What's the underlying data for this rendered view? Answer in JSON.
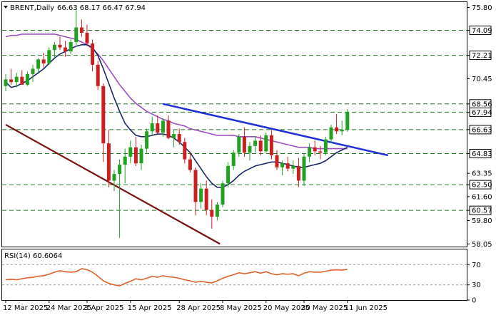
{
  "header": {
    "symbol": "BRENT,Daily",
    "ohlc": "66.63 68.17 66.47 67.94",
    "indicator_label": "RSI(14) 60.6064"
  },
  "colors": {
    "up": "#22a022",
    "down": "#cc1f1f",
    "ma_fast": "#1a2766",
    "ma_slow": "#9b4fc0",
    "trend_down": "#7a1010",
    "trend_blue": "#1f2fd6",
    "level_line": "#1f7a1f",
    "rsi_line": "#e0602a"
  },
  "chart_data": {
    "type": "candlestick",
    "y_ticks": [
      "75.80",
      "74.09",
      "72.21",
      "70.45",
      "68.56",
      "67.94",
      "66.63",
      "64.83",
      "63.35",
      "62.50",
      "61.60",
      "60.57",
      "59.80",
      "58.05"
    ],
    "y_tick_values": [
      75.8,
      74.09,
      72.21,
      70.45,
      68.56,
      67.94,
      66.63,
      64.83,
      63.35,
      62.5,
      61.6,
      60.57,
      59.8,
      58.05
    ],
    "highlighted_levels": [
      {
        "value": 74.09,
        "label": "74.09",
        "style": "box"
      },
      {
        "value": 72.21,
        "label": "72.21",
        "style": "box"
      },
      {
        "value": 68.56,
        "label": "68.56",
        "style": "box"
      },
      {
        "value": 67.94,
        "label": "67.94",
        "style": "box-current"
      },
      {
        "value": 66.63,
        "label": "66.63",
        "style": "box"
      },
      {
        "value": 64.83,
        "label": "64.83",
        "style": "box"
      },
      {
        "value": 62.5,
        "label": "62.50",
        "style": "box"
      },
      {
        "value": 60.57,
        "label": "60.57",
        "style": "box"
      }
    ],
    "dashed_levels": [
      74.09,
      72.21,
      68.56,
      67.94,
      66.63,
      64.83,
      62.5,
      60.57
    ],
    "ylim": [
      57.85,
      76.2
    ],
    "x_labels": [
      "12 Mar 2025",
      "24 Mar 2025",
      "3 Apr 2025",
      "15 Apr 2025",
      "28 Apr 2025",
      "8 May 2025",
      "20 May 2025",
      "30 May 2025",
      "11 Jun 2025"
    ],
    "x_label_index": [
      0,
      8,
      15,
      23,
      32,
      40,
      48,
      55,
      63
    ],
    "candles": [
      [
        69.9,
        70.8,
        69.5,
        70.4
      ],
      [
        70.4,
        71.2,
        70.0,
        70.2
      ],
      [
        70.2,
        70.9,
        69.8,
        70.6
      ],
      [
        70.6,
        71.1,
        70.1,
        70.0
      ],
      [
        70.0,
        71.0,
        69.9,
        70.8
      ],
      [
        70.8,
        71.5,
        70.2,
        71.2
      ],
      [
        71.2,
        72.0,
        70.8,
        71.9
      ],
      [
        71.9,
        72.4,
        71.3,
        71.6
      ],
      [
        71.6,
        72.8,
        71.5,
        72.6
      ],
      [
        72.6,
        73.2,
        72.0,
        73.0
      ],
      [
        73.0,
        73.6,
        72.6,
        72.8
      ],
      [
        72.8,
        73.3,
        72.1,
        72.5
      ],
      [
        72.5,
        73.4,
        72.3,
        73.2
      ],
      [
        73.2,
        75.8,
        73.0,
        74.3
      ],
      [
        74.3,
        74.9,
        73.6,
        73.9
      ],
      [
        73.9,
        74.5,
        72.9,
        73.1
      ],
      [
        73.1,
        73.4,
        71.0,
        71.5
      ],
      [
        71.5,
        71.8,
        69.6,
        69.9
      ],
      [
        69.9,
        70.1,
        64.2,
        65.6
      ],
      [
        65.6,
        66.6,
        62.3,
        62.8
      ],
      [
        62.8,
        63.6,
        62.0,
        63.3
      ],
      [
        63.3,
        64.4,
        58.5,
        64.0
      ],
      [
        64.0,
        65.2,
        62.6,
        64.6
      ],
      [
        64.6,
        65.8,
        64.1,
        65.3
      ],
      [
        65.3,
        66.1,
        63.9,
        64.1
      ],
      [
        64.1,
        65.5,
        63.6,
        65.2
      ],
      [
        65.2,
        66.7,
        64.9,
        66.5
      ],
      [
        66.5,
        67.6,
        66.2,
        67.1
      ],
      [
        67.1,
        67.7,
        66.3,
        66.4
      ],
      [
        66.4,
        67.5,
        66.1,
        67.3
      ],
      [
        67.3,
        67.7,
        65.9,
        66.0
      ],
      [
        66.0,
        66.6,
        65.3,
        66.3
      ],
      [
        66.3,
        66.7,
        65.5,
        65.7
      ],
      [
        65.7,
        66.0,
        64.1,
        64.4
      ],
      [
        64.4,
        64.9,
        63.4,
        63.6
      ],
      [
        63.6,
        63.8,
        60.2,
        61.2
      ],
      [
        61.2,
        62.6,
        60.7,
        62.2
      ],
      [
        62.2,
        62.8,
        60.2,
        60.6
      ],
      [
        60.6,
        61.4,
        59.2,
        60.1
      ],
      [
        60.1,
        61.2,
        59.8,
        61.0
      ],
      [
        61.0,
        62.8,
        60.8,
        62.6
      ],
      [
        62.6,
        64.2,
        62.3,
        63.9
      ],
      [
        63.9,
        65.1,
        63.6,
        64.9
      ],
      [
        64.9,
        66.3,
        64.6,
        66.1
      ],
      [
        66.1,
        66.8,
        64.6,
        64.9
      ],
      [
        64.9,
        65.7,
        64.3,
        65.4
      ],
      [
        65.4,
        66.1,
        64.9,
        65.8
      ],
      [
        65.8,
        66.2,
        64.7,
        65.0
      ],
      [
        65.0,
        66.4,
        64.9,
        66.2
      ],
      [
        66.2,
        66.6,
        64.4,
        64.7
      ],
      [
        64.7,
        65.1,
        63.6,
        63.8
      ],
      [
        63.8,
        64.3,
        63.2,
        64.1
      ],
      [
        64.1,
        64.6,
        63.5,
        63.7
      ],
      [
        63.7,
        64.3,
        63.3,
        63.9
      ],
      [
        63.9,
        64.5,
        62.3,
        62.8
      ],
      [
        62.8,
        64.8,
        62.4,
        64.6
      ],
      [
        64.6,
        65.6,
        64.2,
        65.3
      ],
      [
        65.3,
        65.8,
        64.7,
        65.0
      ],
      [
        65.0,
        65.4,
        64.4,
        64.9
      ],
      [
        64.9,
        66.1,
        64.7,
        65.9
      ],
      [
        65.9,
        67.0,
        65.6,
        66.8
      ],
      [
        66.8,
        67.8,
        66.3,
        66.5
      ],
      [
        66.5,
        67.3,
        66.2,
        66.63
      ],
      [
        66.63,
        68.17,
        66.47,
        67.94
      ]
    ],
    "ma_fast": [
      70.2,
      69.8,
      69.9,
      70.1,
      70.3,
      70.6,
      70.9,
      71.2,
      71.6,
      72.0,
      72.3,
      72.5,
      72.7,
      72.9,
      73.0,
      73.0,
      72.8,
      72.2,
      71.2,
      70.1,
      69.0,
      68.0,
      67.1,
      66.6,
      66.2,
      66.1,
      66.1,
      66.2,
      66.3,
      66.3,
      66.2,
      66.0,
      65.7,
      65.3,
      64.9,
      64.3,
      63.7,
      63.1,
      62.6,
      62.3,
      62.3,
      62.5,
      62.8,
      63.2,
      63.5,
      63.7,
      63.9,
      64.0,
      64.1,
      64.2,
      64.2,
      64.1,
      64.0,
      63.9,
      63.8,
      63.8,
      63.9,
      64.0,
      64.1,
      64.3,
      64.6,
      64.9,
      65.1,
      65.3
    ],
    "ma_slow": [
      73.6,
      73.7,
      73.7,
      73.8,
      73.8,
      73.8,
      73.8,
      73.8,
      73.8,
      73.8,
      73.7,
      73.6,
      73.5,
      73.4,
      73.2,
      73.0,
      72.7,
      72.3,
      71.8,
      71.2,
      70.6,
      70.0,
      69.5,
      69.0,
      68.6,
      68.3,
      68.0,
      67.8,
      67.6,
      67.4,
      67.3,
      67.1,
      67.0,
      66.9,
      66.7,
      66.6,
      66.5,
      66.4,
      66.3,
      66.2,
      66.2,
      66.2,
      66.2,
      66.1,
      66.1,
      66.1,
      66.1,
      66.0,
      65.9,
      65.8,
      65.7,
      65.6,
      65.5,
      65.4,
      65.3,
      65.3,
      65.3,
      65.2,
      65.2,
      65.2,
      65.2,
      65.2,
      65.2,
      65.2
    ],
    "trendlines": [
      {
        "name": "descending-support",
        "from": [
          0,
          67.0
        ],
        "to": [
          39.5,
          58.05
        ],
        "color_key": "trend_down"
      },
      {
        "name": "descending-resistance",
        "from": [
          29,
          68.56
        ],
        "to": [
          70.5,
          64.7
        ],
        "color_key": "trend_blue"
      }
    ],
    "rsi": {
      "value_label": "60.6064",
      "ticks": [
        "70",
        "30",
        "0"
      ],
      "tick_values": [
        70,
        30,
        0
      ],
      "ylim": [
        0,
        100
      ],
      "values": [
        40,
        41,
        40,
        42,
        44,
        45,
        47,
        48,
        51,
        55,
        58,
        56,
        55,
        56,
        62,
        60,
        55,
        47,
        38,
        33,
        30,
        28,
        33,
        37,
        42,
        40,
        43,
        47,
        45,
        48,
        46,
        45,
        43,
        40,
        38,
        35,
        37,
        35,
        34,
        38,
        43,
        47,
        50,
        54,
        52,
        54,
        56,
        53,
        56,
        52,
        50,
        52,
        51,
        52,
        48,
        53,
        56,
        55,
        55,
        57,
        59,
        60,
        59,
        60.6
      ]
    }
  }
}
